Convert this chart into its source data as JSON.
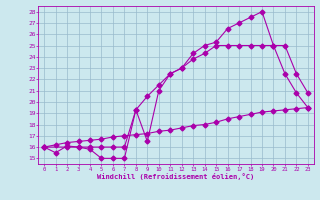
{
  "xlabel": "Windchill (Refroidissement éolien,°C)",
  "xlim": [
    -0.5,
    23.5
  ],
  "ylim": [
    14.5,
    28.5
  ],
  "xticks": [
    0,
    1,
    2,
    3,
    4,
    5,
    6,
    7,
    8,
    9,
    10,
    11,
    12,
    13,
    14,
    15,
    16,
    17,
    18,
    19,
    20,
    21,
    22,
    23
  ],
  "yticks": [
    15,
    16,
    17,
    18,
    19,
    20,
    21,
    22,
    23,
    24,
    25,
    26,
    27,
    28
  ],
  "bg_color": "#cce8ee",
  "line_color": "#aa00aa",
  "grid_color": "#99bbcc",
  "line1_x": [
    0,
    1,
    2,
    3,
    4,
    5,
    6,
    7,
    8,
    9,
    10,
    11,
    12,
    13,
    14,
    15,
    16,
    17,
    18,
    19,
    20,
    21,
    22,
    23
  ],
  "line1_y": [
    16.0,
    15.5,
    16.1,
    16.0,
    15.8,
    15.0,
    15.0,
    15.0,
    19.3,
    16.5,
    21.0,
    22.5,
    23.0,
    24.3,
    25.0,
    25.3,
    26.5,
    27.0,
    27.5,
    28.0,
    25.0,
    22.5,
    20.8,
    19.5
  ],
  "line2_x": [
    0,
    2,
    3,
    4,
    5,
    6,
    7,
    8,
    9,
    10,
    11,
    12,
    13,
    14,
    15,
    16,
    17,
    18,
    19,
    20,
    21,
    22,
    23
  ],
  "line2_y": [
    16.0,
    16.0,
    16.0,
    16.0,
    16.0,
    16.0,
    16.0,
    19.3,
    20.5,
    21.5,
    22.5,
    23.0,
    23.8,
    24.3,
    25.0,
    25.0,
    25.0,
    25.0,
    25.0,
    25.0,
    25.0,
    22.5,
    20.8
  ],
  "line3_x": [
    0,
    1,
    2,
    3,
    4,
    5,
    6,
    7,
    8,
    9,
    10,
    11,
    12,
    13,
    14,
    15,
    16,
    17,
    18,
    19,
    20,
    21,
    22,
    23
  ],
  "line3_y": [
    16.0,
    16.2,
    16.4,
    16.5,
    16.6,
    16.7,
    16.9,
    17.0,
    17.1,
    17.2,
    17.4,
    17.5,
    17.7,
    17.9,
    18.0,
    18.2,
    18.5,
    18.7,
    18.9,
    19.1,
    19.2,
    19.3,
    19.4,
    19.5
  ]
}
